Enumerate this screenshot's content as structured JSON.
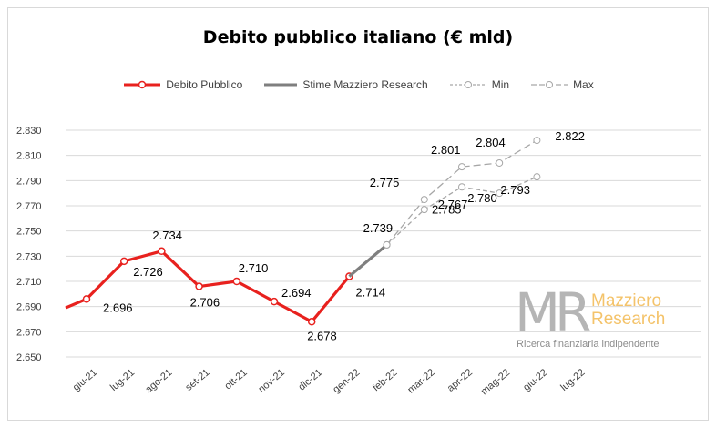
{
  "chart_data": {
    "type": "line",
    "title": "Debito pubblico italiano (€ mld)",
    "categories": [
      "giu-21",
      "lug-21",
      "ago-21",
      "set-21",
      "ott-21",
      "nov-21",
      "dic-21",
      "gen-22",
      "feb-22",
      "mar-22",
      "apr-22",
      "mag-22",
      "giu-22",
      "lug-22"
    ],
    "ylim": [
      2650,
      2830
    ],
    "yticks": [
      "2.650",
      "2.670",
      "2.690",
      "2.710",
      "2.730",
      "2.750",
      "2.770",
      "2.790",
      "2.810",
      "2.830"
    ],
    "grid": true,
    "legend_position": "top",
    "series": [
      {
        "name": "Debito Pubblico",
        "color": "#e8211e",
        "start_y": 2689,
        "points": [
          {
            "x": "giu-21",
            "y": 2696,
            "label": "2.696"
          },
          {
            "x": "lug-21",
            "y": 2726,
            "label": "2.726"
          },
          {
            "x": "ago-21",
            "y": 2734,
            "label": "2.734"
          },
          {
            "x": "set-21",
            "y": 2706,
            "label": "2.706"
          },
          {
            "x": "ott-21",
            "y": 2710,
            "label": "2.710"
          },
          {
            "x": "nov-21",
            "y": 2694,
            "label": "2.694"
          },
          {
            "x": "dic-21",
            "y": 2678,
            "label": "2.678"
          },
          {
            "x": "gen-22",
            "y": 2714,
            "label": "2.714"
          }
        ]
      },
      {
        "name": "Stime Mazziero Research",
        "color": "#7f7f7f",
        "points": [
          {
            "x": "gen-22",
            "y": 2714
          },
          {
            "x": "feb-22",
            "y": 2739,
            "label": "2.739"
          }
        ]
      },
      {
        "name": "Min",
        "color": "#a6a6a6",
        "points": [
          {
            "x": "feb-22",
            "y": 2739
          },
          {
            "x": "mar-22",
            "y": 2767,
            "label": "2.767"
          },
          {
            "x": "apr-22",
            "y": 2785,
            "label": "2.785"
          },
          {
            "x": "mag-22",
            "y": 2780,
            "label": "2.780"
          },
          {
            "x": "giu-22",
            "y": 2793,
            "label": "2.793"
          }
        ]
      },
      {
        "name": "Max",
        "color": "#a6a6a6",
        "points": [
          {
            "x": "feb-22",
            "y": 2739
          },
          {
            "x": "mar-22",
            "y": 2775,
            "label": "2.775"
          },
          {
            "x": "apr-22",
            "y": 2801,
            "label": "2.801"
          },
          {
            "x": "mag-22",
            "y": 2804,
            "label": "2.804"
          },
          {
            "x": "giu-22",
            "y": 2822,
            "label": "2.822"
          }
        ]
      }
    ]
  },
  "watermark": {
    "letters": "MR",
    "name_line1": "Mazziero",
    "name_line2": "Research",
    "tagline": "Ricerca finanziaria indipendente"
  }
}
